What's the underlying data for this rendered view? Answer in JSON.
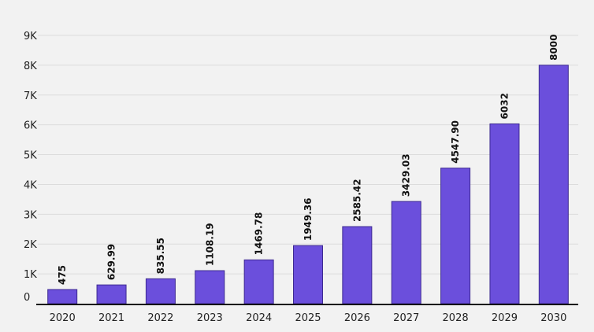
{
  "chart_data": {
    "type": "bar",
    "categories": [
      "2020",
      "2021",
      "2022",
      "2023",
      "2024",
      "2025",
      "2026",
      "2027",
      "2028",
      "2029",
      "2030"
    ],
    "values": [
      475,
      629.99,
      835.55,
      1108.19,
      1469.78,
      1949.36,
      2585.42,
      3429.03,
      4547.9,
      6032,
      8000
    ],
    "value_labels": [
      "475",
      "629.99",
      "835.55",
      "1108.19",
      "1469.78",
      "1949.36",
      "2585.42",
      "3429.03",
      "4547.90",
      "6032",
      "8000"
    ],
    "y_ticks": [
      0,
      1000,
      2000,
      3000,
      4000,
      5000,
      6000,
      7000,
      8000,
      9000
    ],
    "y_tick_labels": [
      "0",
      "1K",
      "2K",
      "3K",
      "4K",
      "5K",
      "6K",
      "7K",
      "8K",
      "9K"
    ],
    "ylim": [
      0,
      9000
    ],
    "grid": true,
    "bar_color": "#6b4fdc",
    "bar_outline": "#3d2a91",
    "grid_color": "#dcdcdc",
    "axis_color": "#111111"
  }
}
